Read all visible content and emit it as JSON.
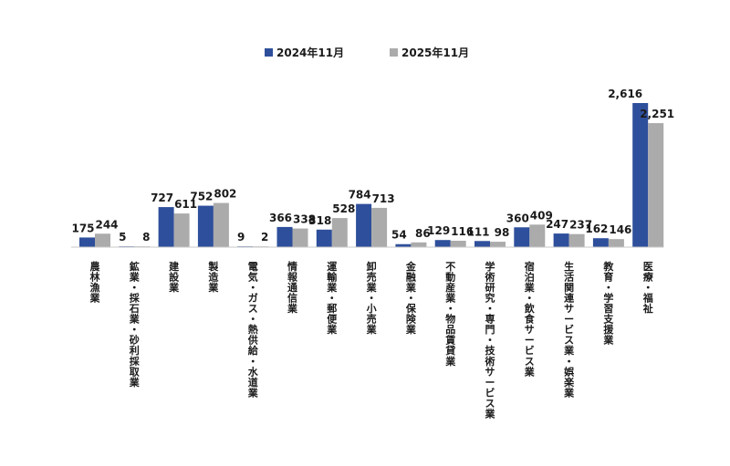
{
  "chart_data": {
    "type": "bar",
    "categories": [
      "農林漁業",
      "鉱業・採石業・砂利採取業",
      "建設業",
      "製造業",
      "電気・ガス・熱供給・水道業",
      "情報通信業",
      "運輸業・郵便業",
      "卸売業・小売業",
      "金融業・保険業",
      "不動産業・物品賃貸業",
      "学術研究・専門・技術サービス業",
      "宿泊業・飲食サービス業",
      "生活関連サービス業・娯楽業",
      "教育・学習支援業",
      "医療・福祉"
    ],
    "series": [
      {
        "name": "2024年11月",
        "color": "#2e4f9b",
        "values": [
          175,
          5,
          727,
          752,
          9,
          366,
          318,
          784,
          54,
          129,
          111,
          360,
          247,
          162,
          2616
        ],
        "labels": [
          "175",
          "5",
          "727",
          "752",
          "9",
          "366",
          "318",
          "784",
          "54",
          "129",
          "111",
          "360",
          "247",
          "162",
          "2,616"
        ]
      },
      {
        "name": "2025年11月",
        "color": "#ababab",
        "values": [
          244,
          8,
          611,
          802,
          2,
          338,
          528,
          713,
          86,
          116,
          98,
          409,
          237,
          146,
          2251
        ],
        "labels": [
          "244",
          "8",
          "611",
          "802",
          "2",
          "338",
          "528",
          "713",
          "86",
          "116",
          "98",
          "409",
          "237",
          "146",
          "2,251"
        ]
      }
    ],
    "ylim": [
      0,
      2616
    ],
    "legend": "top-center",
    "grid": false
  }
}
